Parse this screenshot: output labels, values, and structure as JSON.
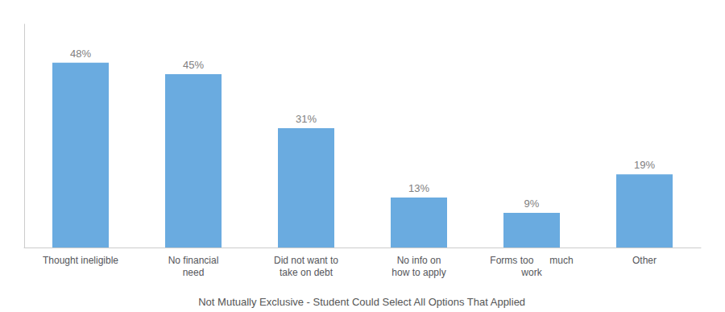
{
  "chart_data": {
    "type": "bar",
    "categories": [
      "Thought ineligible",
      "No financial\nneed",
      "Did not want to\ntake on debt",
      "No info on\nhow to apply",
      "Forms too      much\nwork",
      "Other"
    ],
    "values": [
      48,
      45,
      31,
      13,
      9,
      19
    ],
    "value_labels": [
      "48%",
      "45%",
      "31%",
      "13%",
      "9%",
      "19%"
    ],
    "data_labels": true,
    "color": "#6aabe0",
    "ylim": [
      0,
      58
    ],
    "grid": false,
    "tick_labels": "x",
    "annotation": "Not Mutually Exclusive - Student Could Select All Options That Applied"
  }
}
